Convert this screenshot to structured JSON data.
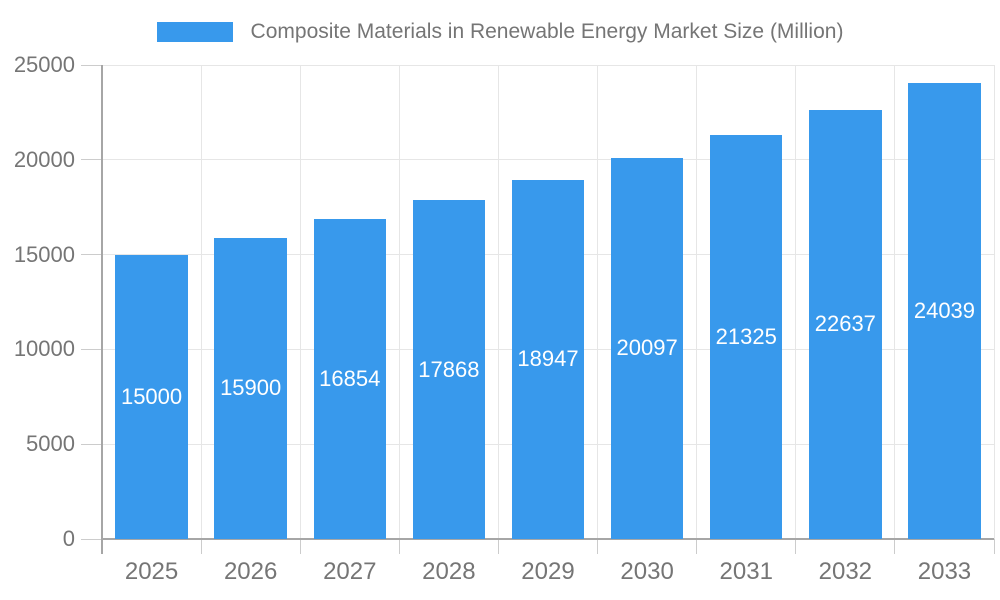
{
  "chart_data": {
    "type": "bar",
    "title": "Composite Materials in Renewable Energy Market Size (Million)",
    "categories": [
      "2025",
      "2026",
      "2027",
      "2028",
      "2029",
      "2030",
      "2031",
      "2032",
      "2033"
    ],
    "values": [
      15000,
      15900,
      16854,
      17868,
      18947,
      20097,
      21325,
      22637,
      24039
    ],
    "series_name": "Composite Materials in Renewable Energy Market Size (Million)",
    "xlabel": "",
    "ylabel": "",
    "ylim": [
      0,
      25000
    ],
    "yticks": [
      0,
      5000,
      10000,
      15000,
      20000,
      25000
    ],
    "grid": true,
    "legend_position": "top",
    "value_labels": "inside-center"
  },
  "colors": {
    "bar": "#3899ec",
    "bar_value_label": "#ffffff",
    "grid": "#e6e6e6",
    "axis_line": "#a6a6a6",
    "tick": "#cccccc",
    "axis_text": "#757575",
    "background": "#ffffff"
  }
}
